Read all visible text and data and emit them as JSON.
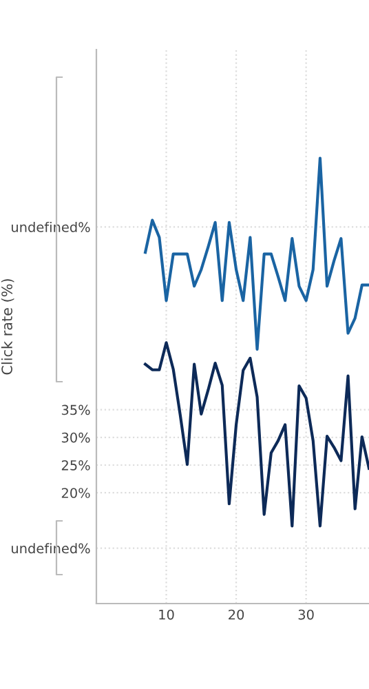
{
  "chart_data": {
    "type": "line",
    "ylabel": "Click rate (%)",
    "x": [
      7,
      8,
      9,
      10,
      11,
      12,
      13,
      14,
      15,
      16,
      17,
      18,
      19,
      20,
      21,
      22,
      23,
      24,
      25,
      26,
      27,
      28,
      29,
      30,
      31,
      32,
      33,
      34,
      35,
      36,
      37,
      38,
      39
    ],
    "series": [
      {
        "color": "#1a64a3",
        "values": [
          63.4,
          69.2,
          66.1,
          54.7,
          63.1,
          63.1,
          63.1,
          57.3,
          60.3,
          64.4,
          68.8,
          54.7,
          68.8,
          60.3,
          54.7,
          66.1,
          45.9,
          63.1,
          63.1,
          59.0,
          54.7,
          65.9,
          57.3,
          54.7,
          60.3,
          80.4,
          57.3,
          61.9,
          65.9,
          48.8,
          51.5,
          57.5,
          57.5
        ]
      },
      {
        "color": "#0d2a58",
        "values": [
          43.2,
          42.2,
          42.2,
          47.1,
          42.3,
          34.0,
          25.1,
          43.2,
          34.2,
          38.6,
          43.4,
          39.4,
          18.0,
          32.3,
          42.1,
          44.3,
          37.3,
          16.1,
          27.2,
          29.4,
          32.3,
          14.0,
          39.3,
          37.1,
          29.4,
          14.0,
          30.2,
          28.2,
          25.8,
          41.1,
          17.1,
          30.1,
          24.4
        ]
      }
    ],
    "xlim": [
      0,
      39
    ],
    "xticks": [
      10,
      20,
      30
    ],
    "ylim": [
      0,
      100
    ],
    "yticks": [
      {
        "value": 10,
        "label": "undefined%"
      },
      {
        "value": 20,
        "label": "20%"
      },
      {
        "value": 25,
        "label": "25%"
      },
      {
        "value": 30,
        "label": "30%"
      },
      {
        "value": 35,
        "label": "35%"
      },
      {
        "value": 68,
        "label": "undefined%"
      }
    ],
    "grid": true,
    "marker": "none",
    "line_style": "solid"
  }
}
